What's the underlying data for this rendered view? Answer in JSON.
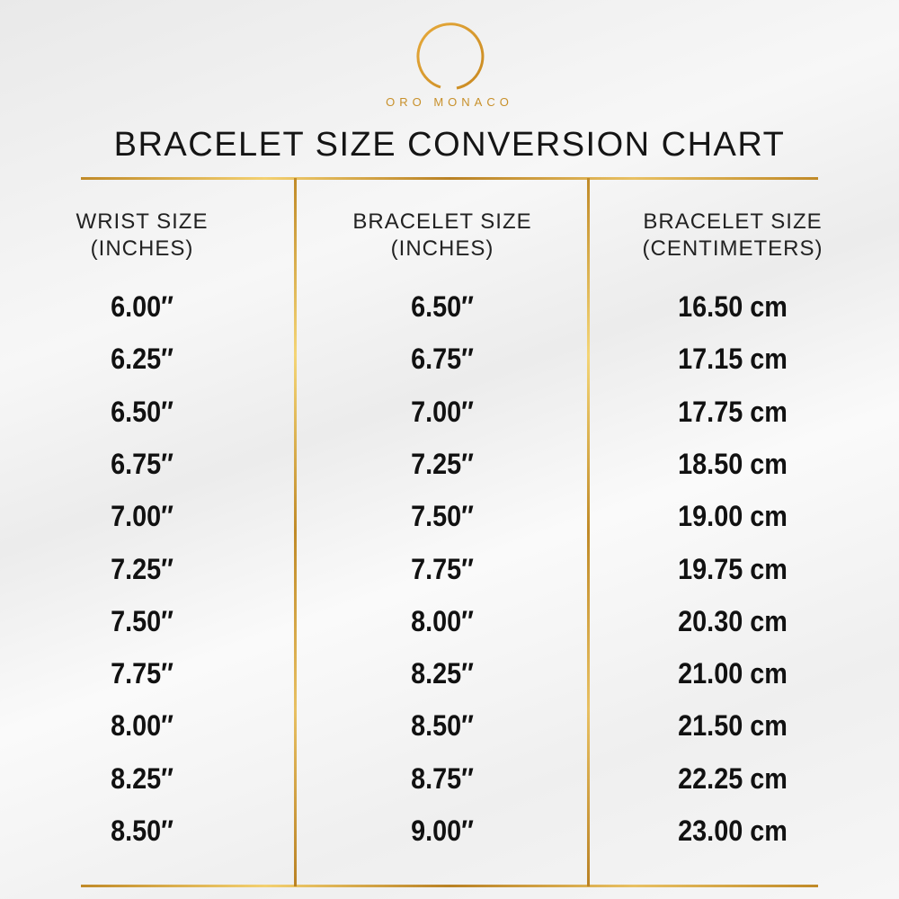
{
  "brand": {
    "name": "ORO MONACO",
    "color": "#c8902a"
  },
  "title": "BRACELET SIZE CONVERSION CHART",
  "chart_data": {
    "type": "table",
    "title": "BRACELET SIZE CONVERSION CHART",
    "columns": [
      {
        "line1": "WRIST SIZE",
        "line2": "(INCHES)"
      },
      {
        "line1": "BRACELET SIZE",
        "line2": "(INCHES)"
      },
      {
        "line1": "BRACELET SIZE",
        "line2": "(CENTIMETERS)"
      }
    ],
    "rows": [
      [
        "6.00″",
        "6.50″",
        "16.50 cm"
      ],
      [
        "6.25″",
        "6.75″",
        "17.15 cm"
      ],
      [
        "6.50″",
        "7.00″",
        "17.75 cm"
      ],
      [
        "6.75″",
        "7.25″",
        "18.50 cm"
      ],
      [
        "7.00″",
        "7.50″",
        "19.00 cm"
      ],
      [
        "7.25″",
        "7.75″",
        "19.75 cm"
      ],
      [
        "7.50″",
        "8.00″",
        "20.30 cm"
      ],
      [
        "7.75″",
        "8.25″",
        "21.00 cm"
      ],
      [
        "8.00″",
        "8.50″",
        "21.50 cm"
      ],
      [
        "8.25″",
        "8.75″",
        "22.25 cm"
      ],
      [
        "8.50″",
        "9.00″",
        "23.00 cm"
      ]
    ]
  }
}
